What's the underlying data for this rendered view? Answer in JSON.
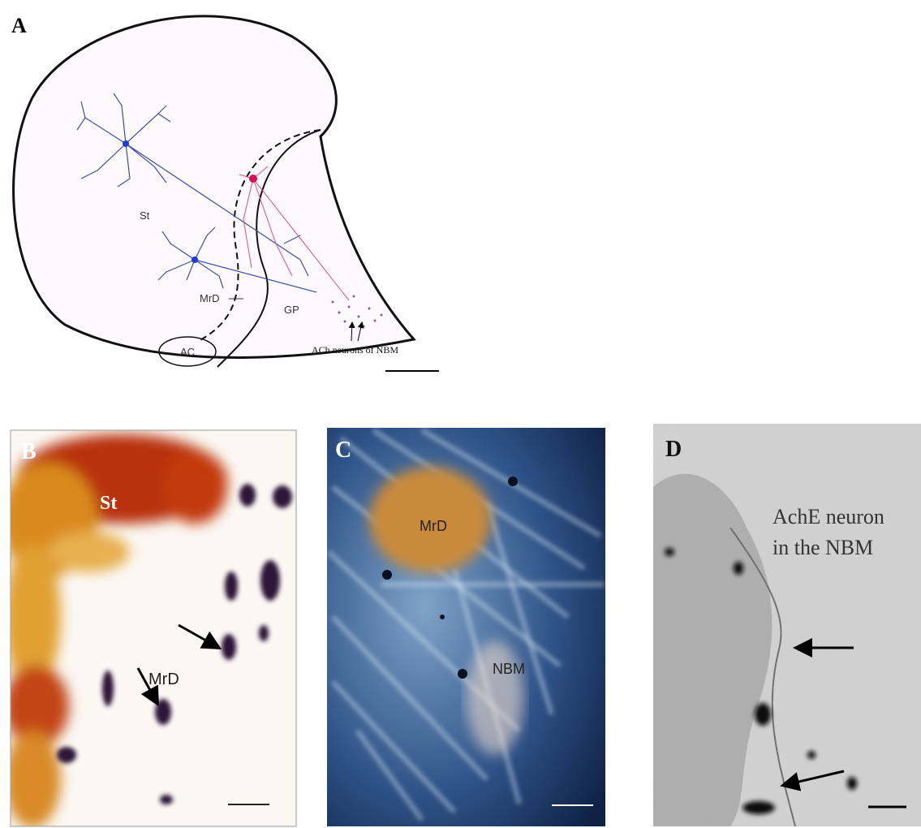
{
  "panels": [
    {
      "label": "A",
      "texts": [
        "St",
        "MrD",
        "GP",
        "AC",
        "ACh neurons of NBM"
      ]
    },
    {
      "label": "B",
      "texts": [
        "St",
        "MrD"
      ]
    },
    {
      "label": "C",
      "texts": [
        "MrD",
        "NBM"
      ]
    },
    {
      "label": "D",
      "texts": [
        "AchE neuron",
        "in the NBM"
      ]
    }
  ]
}
